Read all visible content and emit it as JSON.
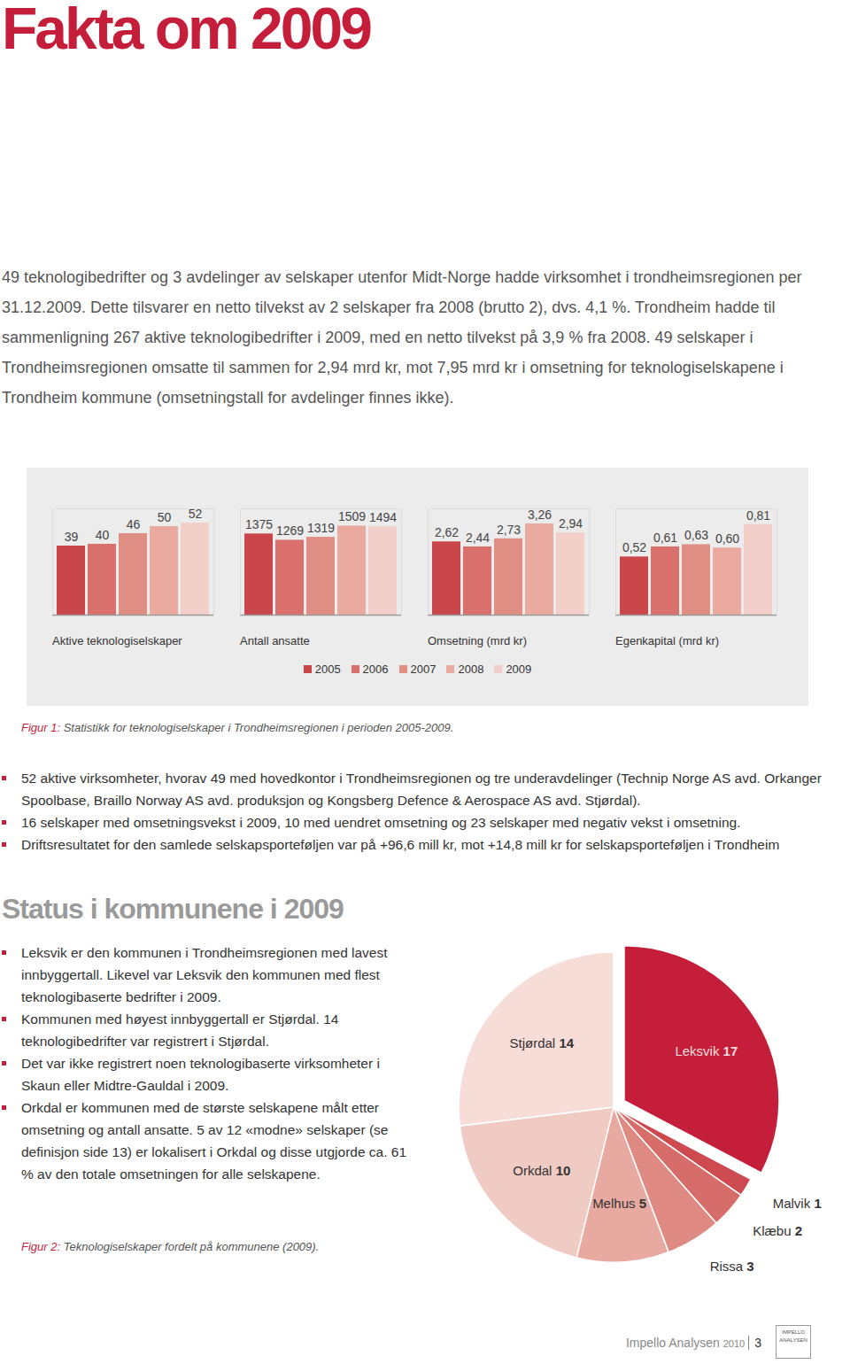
{
  "document": {
    "title": "Fakta om 2009",
    "intro": "49 teknologibedrifter og 3 avdelinger av selskaper utenfor Midt-Norge hadde virksomhet i trondheimsregionen per 31.12.2009. Dette tilsvarer en netto tilvekst av 2 selskaper fra 2008 (brutto 2), dvs. 4,1 %. Trondheim hadde til sammenligning 267 aktive teknologibedrifter i 2009, med en netto tilvekst på 3,9 % fra 2008. 49 selskaper i Trondheimsregionen omsatte til sammen for 2,94 mrd kr, mot 7,95 mrd kr i omsetning for teknologiselskapene i Trondheim kommune (omsetningstall for avdelinger finnes ikke).",
    "figure1_caption": {
      "label": "Figur 1:",
      "text": "Statistikk for teknologiselskaper i Trondheimsregionen i perioden 2005-2009."
    },
    "bullets1": [
      "52 aktive virksomheter, hvorav 49 med hovedkontor i Trondheimsregionen og tre underavdelinger (Technip Norge AS avd. Orkanger Spoolbase, Braillo Norway AS avd. produksjon og Kongsberg Defence & Aerospace AS avd. Stjørdal).",
      "16 selskaper med omsetningsvekst i 2009, 10 med uendret omsetning og 23 selskaper med negativ vekst i omsetning.",
      "Driftsresultatet for den samlede selskapsporteføljen var på +96,6 mill kr, mot +14,8 mill kr for selskapsporteføljen i Trondheim"
    ],
    "heading2": "Status i kommunene i 2009",
    "bullets2": [
      "Leksvik er den kommunen i Trondheimsregionen med lavest innbyggertall. Likevel var Leksvik den kommunen med flest teknologibaserte bedrifter i 2009.",
      "Kommunen med høyest innbyggertall er Stjørdal. 14 teknologibedrifter var registrert i Stjørdal.",
      "Det var ikke registrert noen teknologibaserte virksomheter i Skaun eller Midtre-Gauldal i 2009.",
      "Orkdal er kommunen med de største selskapene målt etter omsetning og antall ansatte. 5 av 12 «modne» selskaper (se definisjon side 13) er lokalisert i Orkdal og disse utgjorde ca. 61 % av den totale omsetningen for alle selskapene."
    ],
    "figure2_caption": {
      "label": "Figur 2:",
      "text": "Teknologiselskaper fordelt på kommunene (2009)."
    },
    "footer": {
      "publication": "Impello Analysen",
      "year": "2010",
      "page": "3",
      "logo": [
        "IMPELLO",
        "ANALYSEN"
      ]
    }
  },
  "chart_data": [
    {
      "type": "bar",
      "title": "Aktive teknologiselskaper",
      "categories": [
        "2005",
        "2006",
        "2007",
        "2008",
        "2009"
      ],
      "values": [
        39,
        40,
        46,
        50,
        52
      ],
      "colors": [
        "#c9464a",
        "#d9706b",
        "#e08f85",
        "#eaaaa0",
        "#f2cfc8"
      ],
      "ylim": [
        0,
        60
      ],
      "yticks": [],
      "data_labels": true,
      "tick_labels": false,
      "legend": "bottom"
    },
    {
      "type": "bar",
      "title": "Antall ansatte",
      "categories": [
        "2005",
        "2006",
        "2007",
        "2008",
        "2009"
      ],
      "values": [
        1375,
        1269,
        1319,
        1509,
        1494
      ],
      "colors": [
        "#c9464a",
        "#d9706b",
        "#e08f85",
        "#eaaaa0",
        "#f2cfc8"
      ],
      "ylim": [
        0,
        1800
      ],
      "yticks": [],
      "data_labels": true,
      "tick_labels": false,
      "legend": "bottom"
    },
    {
      "type": "bar",
      "title": "Omsetning (mrd kr)",
      "categories": [
        "2005",
        "2006",
        "2007",
        "2008",
        "2009"
      ],
      "values": [
        2.62,
        2.44,
        2.73,
        3.26,
        2.94
      ],
      "value_labels": [
        "2,62",
        "2,44",
        "2,73",
        "3,26",
        "2,94"
      ],
      "colors": [
        "#c9464a",
        "#d9706b",
        "#e08f85",
        "#eaaaa0",
        "#f2cfc8"
      ],
      "ylim": [
        0,
        3.8
      ],
      "yticks": [],
      "data_labels": true,
      "tick_labels": false,
      "legend": "bottom"
    },
    {
      "type": "bar",
      "title": "Egenkapital (mrd kr)",
      "categories": [
        "2005",
        "2006",
        "2007",
        "2008",
        "2009"
      ],
      "values": [
        0.52,
        0.61,
        0.63,
        0.6,
        0.81
      ],
      "value_labels": [
        "0,52",
        "0,61",
        "0,63",
        "0,60",
        "0,81"
      ],
      "colors": [
        "#c9464a",
        "#d9706b",
        "#e08f85",
        "#eaaaa0",
        "#f2cfc8"
      ],
      "ylim": [
        0,
        0.95
      ],
      "yticks": [],
      "data_labels": true,
      "tick_labels": false,
      "legend": "bottom"
    },
    {
      "type": "pie",
      "categories": [
        "Leksvik",
        "Malvik",
        "Klæbu",
        "Rissa",
        "Melhus",
        "Orkdal",
        "Stjørdal"
      ],
      "values": [
        17,
        1,
        2,
        3,
        5,
        10,
        14
      ],
      "colors": [
        "#c41e3a",
        "#cc4a50",
        "#d66d6b",
        "#de8a82",
        "#e8aaa0",
        "#f0cbc4",
        "#f6ddd8"
      ],
      "data_labels": true
    }
  ]
}
